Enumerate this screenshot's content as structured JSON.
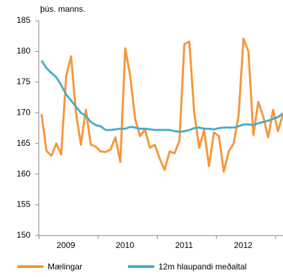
{
  "chart_data": {
    "type": "line",
    "y_label": "þús. manns.",
    "categories": [
      null,
      null,
      null,
      null,
      null,
      "2009",
      null,
      null,
      null,
      null,
      null,
      null,
      null,
      null,
      null,
      null,
      null,
      "2010",
      null,
      null,
      null,
      null,
      null,
      null,
      null,
      null,
      null,
      null,
      null,
      "2011",
      null,
      null,
      null,
      null,
      null,
      null,
      null,
      null,
      null,
      null,
      null,
      "2012",
      null,
      null,
      null,
      null,
      null,
      null,
      null,
      null
    ],
    "series": [
      {
        "name": "Mælingar",
        "color": "#f7963a",
        "values": [
          169.8,
          163.8,
          163,
          165,
          163.2,
          176,
          179.2,
          170,
          164.8,
          170.5,
          164.8,
          164.5,
          163.7,
          163.6,
          164,
          166,
          162,
          180.5,
          176,
          169,
          166.2,
          167.3,
          164.3,
          164.8,
          162.5,
          160.7,
          163.7,
          163.4,
          165.5,
          181.2,
          181.6,
          170,
          164.3,
          167.2,
          161.3,
          166.8,
          166.2,
          160.4,
          163.7,
          165,
          169.5,
          182.1,
          180,
          166.4,
          171.8,
          169.4,
          166,
          170.5,
          167,
          169.8
        ]
      },
      {
        "name": "12m hlaupandi meðaltal",
        "color": "#4bacc6",
        "values": [
          178.5,
          177.3,
          176.5,
          175.8,
          174.5,
          173,
          172,
          171,
          170,
          169.5,
          168.5,
          168,
          167.8,
          167.2,
          167.2,
          167.3,
          167.4,
          167.4,
          167.7,
          167.6,
          167.4,
          167.4,
          167.3,
          167.2,
          167.2,
          167.2,
          167.2,
          167,
          166.9,
          167,
          167.2,
          167.5,
          167.6,
          167.4,
          167.4,
          167.3,
          167.5,
          167.6,
          167.6,
          167.6,
          167.8,
          168.1,
          168.1,
          168,
          168.3,
          168.5,
          168.7,
          169,
          169.3,
          169.9
        ]
      }
    ],
    "ylim": [
      150,
      185
    ],
    "yticks": [
      150,
      155,
      160,
      165,
      170,
      175,
      180,
      185
    ]
  }
}
